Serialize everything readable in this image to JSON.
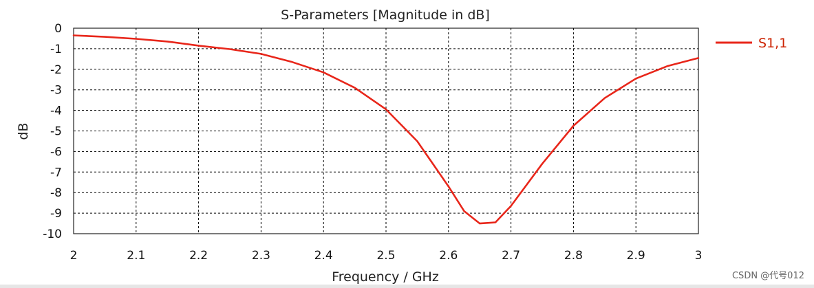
{
  "chart_data": {
    "type": "line",
    "title": "S-Parameters [Magnitude in dB]",
    "xlabel": "Frequency / GHz",
    "ylabel": "dB",
    "xlim": [
      2,
      3
    ],
    "ylim": [
      -10,
      0
    ],
    "xticks": [
      "2",
      "2.1",
      "2.2",
      "2.3",
      "2.4",
      "2.5",
      "2.6",
      "2.7",
      "2.8",
      "2.9",
      "3"
    ],
    "yticks": [
      "0",
      "-1",
      "-2",
      "-3",
      "-4",
      "-5",
      "-6",
      "-7",
      "-8",
      "-9",
      "-10"
    ],
    "grid": true,
    "legend_position": "right-top",
    "series": [
      {
        "name": "S1,1",
        "color": "#e8261a",
        "x": [
          2.0,
          2.05,
          2.1,
          2.15,
          2.2,
          2.25,
          2.3,
          2.35,
          2.4,
          2.45,
          2.5,
          2.55,
          2.6,
          2.625,
          2.65,
          2.675,
          2.7,
          2.75,
          2.8,
          2.85,
          2.9,
          2.95,
          3.0
        ],
        "y": [
          -0.35,
          -0.42,
          -0.52,
          -0.65,
          -0.85,
          -1.02,
          -1.25,
          -1.65,
          -2.15,
          -2.9,
          -3.95,
          -5.5,
          -7.7,
          -8.9,
          -9.5,
          -9.45,
          -8.65,
          -6.6,
          -4.75,
          -3.4,
          -2.45,
          -1.85,
          -1.45
        ]
      }
    ]
  },
  "watermark": "CSDN @代号012"
}
